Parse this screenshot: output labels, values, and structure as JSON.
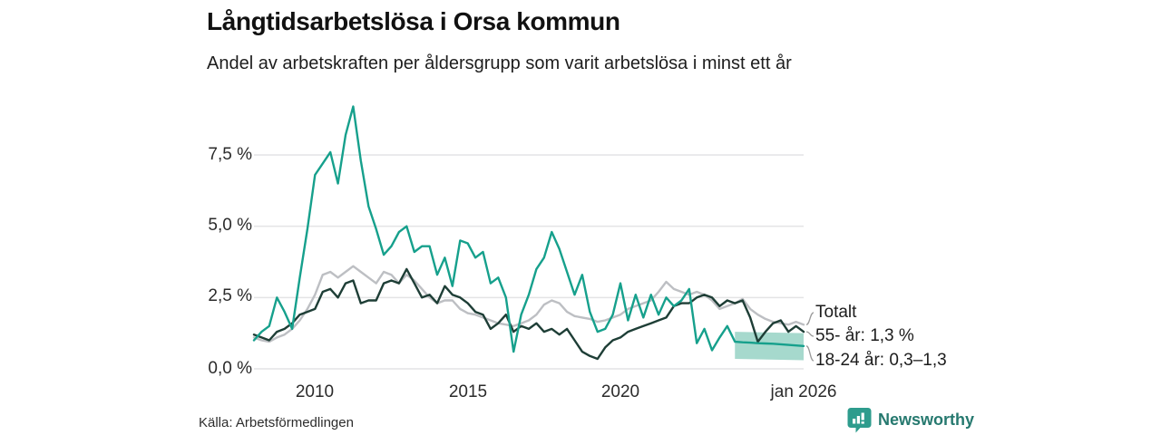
{
  "header": {
    "title": "Långtidsarbetslösa i Orsa kommun",
    "subtitle": "Andel av arbetskraften per åldersgrupp som varit arbetslösa i minst ett år"
  },
  "source": {
    "label": "Källa: Arbetsförmedlingen"
  },
  "branding": {
    "name": "Newsworthy",
    "icon": "newsworthy-chart-bubble-icon",
    "text_color": "#26796f",
    "icon_color": "#2e9c8d"
  },
  "colors": {
    "grid": "#e4e4e5",
    "leader": "#9a9a9a",
    "band": "#a6d9cd",
    "background": "#ffffff"
  },
  "chart_data": {
    "type": "line",
    "title": "Långtidsarbetslösa i Orsa kommun",
    "subtitle": "Andel av arbetskraften per åldersgrupp som varit arbetslösa i minst ett år",
    "grid": true,
    "x_range": [
      2008,
      2026
    ],
    "y_range": [
      0,
      9.5
    ],
    "y_ticks": [
      {
        "value": 0,
        "label": "0,0 %"
      },
      {
        "value": 2.5,
        "label": "2,5 %"
      },
      {
        "value": 5,
        "label": "5,0 %"
      },
      {
        "value": 7.5,
        "label": "7,5 %"
      }
    ],
    "x_ticks": [
      {
        "value": 2010,
        "label": "2010"
      },
      {
        "value": 2015,
        "label": "2015"
      },
      {
        "value": 2020,
        "label": "2020"
      },
      {
        "value": 2026,
        "label": "jan 2026"
      }
    ],
    "x": [
      2008,
      2008.25,
      2008.5,
      2008.75,
      2009,
      2009.25,
      2009.5,
      2009.75,
      2010,
      2010.25,
      2010.5,
      2010.75,
      2011,
      2011.25,
      2011.5,
      2011.75,
      2012,
      2012.25,
      2012.5,
      2012.75,
      2013,
      2013.25,
      2013.5,
      2013.75,
      2014,
      2014.25,
      2014.5,
      2014.75,
      2015,
      2015.25,
      2015.5,
      2015.75,
      2016,
      2016.25,
      2016.5,
      2016.75,
      2017,
      2017.25,
      2017.5,
      2017.75,
      2018,
      2018.25,
      2018.5,
      2018.75,
      2019,
      2019.25,
      2019.5,
      2019.75,
      2020,
      2020.25,
      2020.5,
      2020.75,
      2021,
      2021.25,
      2021.5,
      2021.75,
      2022,
      2022.25,
      2022.5,
      2022.75,
      2023,
      2023.25,
      2023.5,
      2023.75,
      2024,
      2024.25,
      2024.5,
      2024.75,
      2025,
      2025.25,
      2025.5,
      2025.75,
      2026
    ],
    "series": [
      {
        "name": "Totalt",
        "color": "#bdbfc3",
        "values": [
          1.1,
          1.0,
          0.95,
          1.1,
          1.2,
          1.4,
          1.7,
          2.1,
          2.6,
          3.3,
          3.4,
          3.2,
          3.4,
          3.6,
          3.4,
          3.2,
          3.0,
          3.4,
          3.3,
          3.0,
          3.3,
          3.1,
          2.8,
          2.5,
          2.3,
          2.4,
          2.4,
          2.1,
          1.95,
          1.9,
          1.8,
          1.7,
          1.6,
          1.55,
          1.5,
          1.6,
          1.7,
          1.9,
          2.25,
          2.4,
          2.3,
          2.0,
          1.85,
          1.8,
          1.75,
          1.65,
          1.7,
          1.8,
          1.9,
          2.1,
          2.2,
          2.3,
          2.4,
          2.7,
          3.05,
          2.8,
          2.7,
          2.6,
          2.7,
          2.6,
          2.4,
          2.1,
          2.2,
          2.3,
          2.45,
          2.1,
          1.9,
          1.75,
          1.65,
          1.6,
          1.55,
          1.65,
          1.55
        ]
      },
      {
        "name": "55- år",
        "color": "#1e3e36",
        "values": [
          1.2,
          1.1,
          1.0,
          1.3,
          1.4,
          1.6,
          1.9,
          2.0,
          2.1,
          2.7,
          2.8,
          2.5,
          3.0,
          3.1,
          2.3,
          2.4,
          2.4,
          3.0,
          3.1,
          3.0,
          3.5,
          3.0,
          2.5,
          2.6,
          2.3,
          2.9,
          2.6,
          2.5,
          2.3,
          2.0,
          1.9,
          1.4,
          1.6,
          1.9,
          1.3,
          1.5,
          1.4,
          1.6,
          1.3,
          1.4,
          1.2,
          1.4,
          1.0,
          0.6,
          0.45,
          0.35,
          0.75,
          1.0,
          1.1,
          1.3,
          1.4,
          1.5,
          1.6,
          1.7,
          1.8,
          2.2,
          2.3,
          2.3,
          2.5,
          2.6,
          2.5,
          2.2,
          2.4,
          2.3,
          2.4,
          1.8,
          0.95,
          1.3,
          1.6,
          1.7,
          1.3,
          1.5,
          1.3
        ]
      },
      {
        "name": "18-24 år",
        "color": "#16a08c",
        "values": [
          1.0,
          1.3,
          1.5,
          2.5,
          2.0,
          1.4,
          3.2,
          4.9,
          6.8,
          7.2,
          7.6,
          6.5,
          8.2,
          9.2,
          7.3,
          5.7,
          4.9,
          4.0,
          4.3,
          4.8,
          5.0,
          4.1,
          4.3,
          4.3,
          3.3,
          3.9,
          2.9,
          4.5,
          4.4,
          3.9,
          4.1,
          3.0,
          3.2,
          2.5,
          0.6,
          1.9,
          2.6,
          3.5,
          3.9,
          4.8,
          4.2,
          3.4,
          2.6,
          3.3,
          2.0,
          1.3,
          1.4,
          1.9,
          3.0,
          1.7,
          2.6,
          1.8,
          2.6,
          1.9,
          2.5,
          2.2,
          2.4,
          2.8,
          0.9,
          1.4,
          0.65,
          1.1,
          1.5,
          0.95,
          0.93,
          0.92,
          0.9,
          0.89,
          0.88,
          0.86,
          0.84,
          0.82,
          0.8
        ]
      }
    ],
    "forecast_band": {
      "series": "18-24 år",
      "color": "#a6d9cd",
      "x": [
        2023.75,
        2026
      ],
      "low": [
        0.35,
        0.3
      ],
      "high": [
        1.3,
        1.25
      ]
    },
    "annotations": [
      {
        "label": "Totalt",
        "series": "Totalt",
        "end_value": 1.55
      },
      {
        "label": "55- år: 1,3 %",
        "series": "55- år",
        "end_value": 1.3
      },
      {
        "label": "18-24 år: 0,3–1,3",
        "series": "18-24 år",
        "end_value": 0.8
      }
    ],
    "legend_position": "right-end-labels"
  }
}
